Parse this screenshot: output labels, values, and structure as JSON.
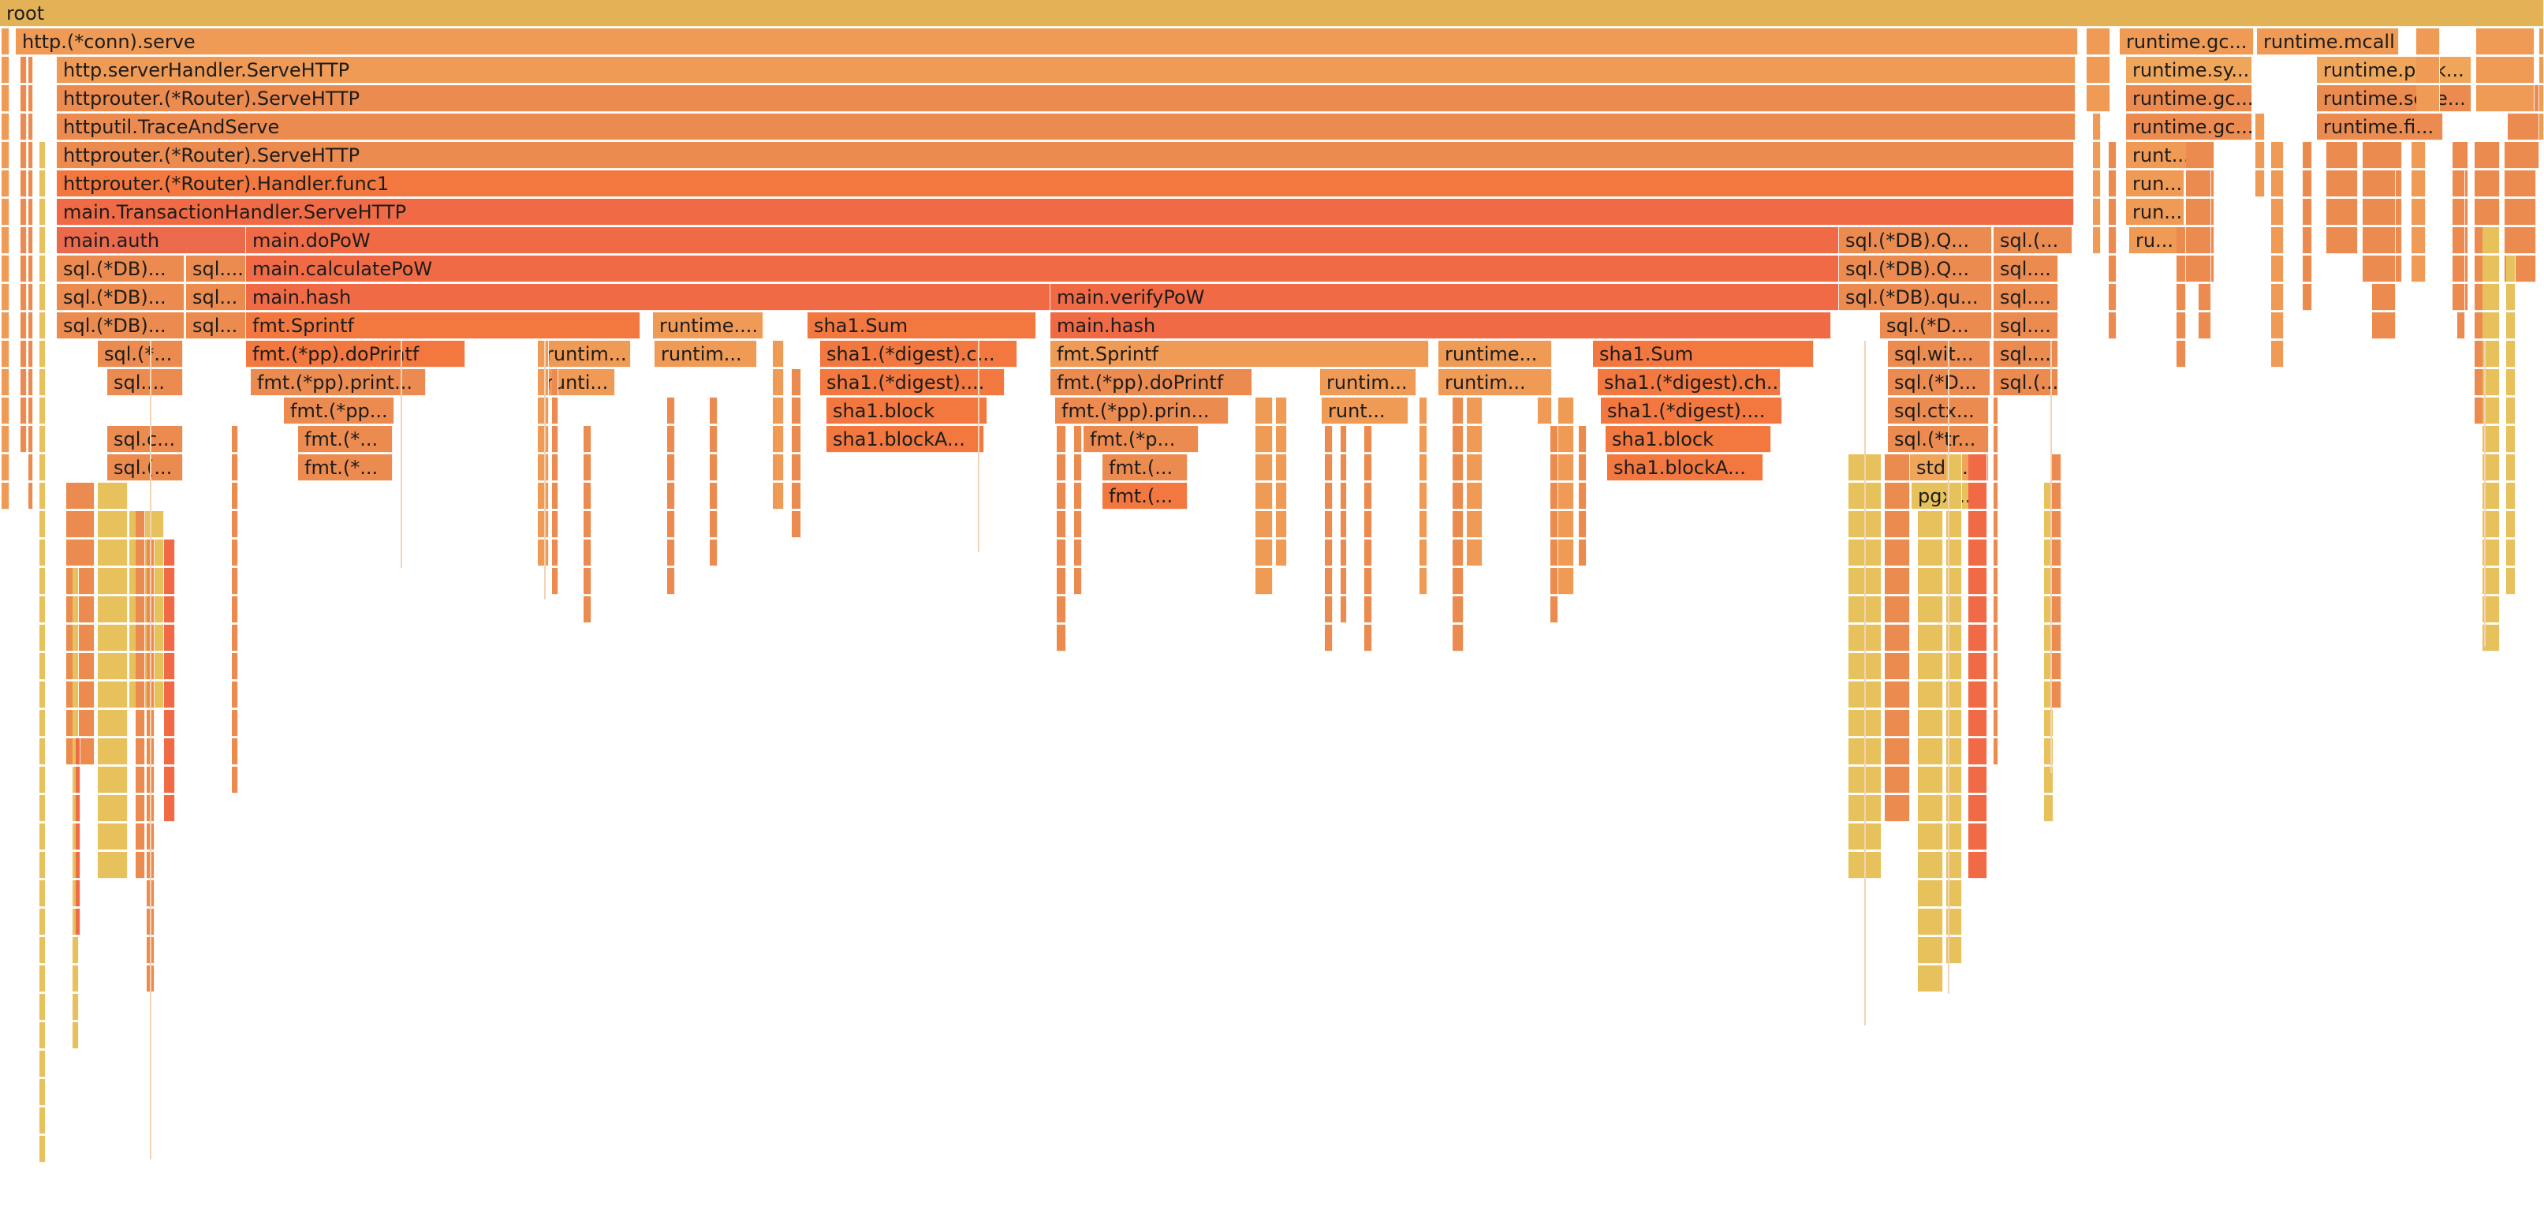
{
  "flamegraph": {
    "root_label": "root",
    "colors": {
      "root": "#e3b257",
      "c1": "#f0a65a",
      "c2": "#ef9a55",
      "c3": "#ec8b4f",
      "c4": "#f2783f",
      "c5": "#f06a45",
      "c6": "#eb6a4b",
      "c7": "#e7c15c",
      "c8": "#e8a34f"
    },
    "frames": [
      {
        "label": "root"
      },
      {
        "label": "http.(*conn).serve"
      },
      {
        "label": "runtime.gc..."
      },
      {
        "label": "runtime.mcall"
      },
      {
        "label": "http.serverHandler.ServeHTTP"
      },
      {
        "label": "runtime.sy..."
      },
      {
        "label": "runtime.park..."
      },
      {
        "label": "httprouter.(*Router).ServeHTTP"
      },
      {
        "label": "runtime.gc..."
      },
      {
        "label": "runtime.sche..."
      },
      {
        "label": "httputil.TraceAndServe"
      },
      {
        "label": "runtime.gc..."
      },
      {
        "label": "runtime.fi..."
      },
      {
        "label": "httprouter.(*Router).ServeHTTP"
      },
      {
        "label": "runt..."
      },
      {
        "label": "httprouter.(*Router).Handler.func1"
      },
      {
        "label": "run..."
      },
      {
        "label": "main.TransactionHandler.ServeHTTP"
      },
      {
        "label": "run..."
      },
      {
        "label": "main.auth"
      },
      {
        "label": "main.doPoW"
      },
      {
        "label": "sql.(*DB).Q..."
      },
      {
        "label": "sql.(..."
      },
      {
        "label": "ru..."
      },
      {
        "label": "sql.(*DB)..."
      },
      {
        "label": "sql...."
      },
      {
        "label": "main.calculatePoW"
      },
      {
        "label": "sql.(*DB).Q..."
      },
      {
        "label": "sql...."
      },
      {
        "label": "sql.(*DB)..."
      },
      {
        "label": "sql..."
      },
      {
        "label": "main.hash"
      },
      {
        "label": "main.verifyPoW"
      },
      {
        "label": "sql.(*DB).qu..."
      },
      {
        "label": "sql...."
      },
      {
        "label": "sql.(*DB)..."
      },
      {
        "label": "sql..."
      },
      {
        "label": "fmt.Sprintf"
      },
      {
        "label": "runtime...."
      },
      {
        "label": "sha1.Sum"
      },
      {
        "label": "main.hash"
      },
      {
        "label": "sql.(*D..."
      },
      {
        "label": "sql...."
      },
      {
        "label": "sql.(*..."
      },
      {
        "label": "fmt.(*pp).doPrintf"
      },
      {
        "label": "runtim..."
      },
      {
        "label": "runtim..."
      },
      {
        "label": "sha1.(*digest).c..."
      },
      {
        "label": "fmt.Sprintf"
      },
      {
        "label": "runtime..."
      },
      {
        "label": "sha1.Sum"
      },
      {
        "label": "sql.wit..."
      },
      {
        "label": "sql...."
      },
      {
        "label": "sql...."
      },
      {
        "label": "fmt.(*pp).print..."
      },
      {
        "label": "runti..."
      },
      {
        "label": "sha1.(*digest)...."
      },
      {
        "label": "fmt.(*pp).doPrintf"
      },
      {
        "label": "runtim..."
      },
      {
        "label": "runtim..."
      },
      {
        "label": "sha1.(*digest).ch..."
      },
      {
        "label": "sql.(*D..."
      },
      {
        "label": "sql.(..."
      },
      {
        "label": "fmt.(*pp..."
      },
      {
        "label": "sha1.block"
      },
      {
        "label": "fmt.(*pp).prin..."
      },
      {
        "label": "runt..."
      },
      {
        "label": "sha1.(*digest)...."
      },
      {
        "label": "sql.ctx..."
      },
      {
        "label": "sql.c..."
      },
      {
        "label": "fmt.(*..."
      },
      {
        "label": "sha1.blockA..."
      },
      {
        "label": "fmt.(*p..."
      },
      {
        "label": "sha1.block"
      },
      {
        "label": "sql.(*tr..."
      },
      {
        "label": "sql.(..."
      },
      {
        "label": "fmt.(*..."
      },
      {
        "label": "fmt.(..."
      },
      {
        "label": "sha1.blockA..."
      },
      {
        "label": "stdli..."
      },
      {
        "label": "fmt.(..."
      },
      {
        "label": "pgx..."
      },
      {
        "label": ""
      }
    ]
  }
}
